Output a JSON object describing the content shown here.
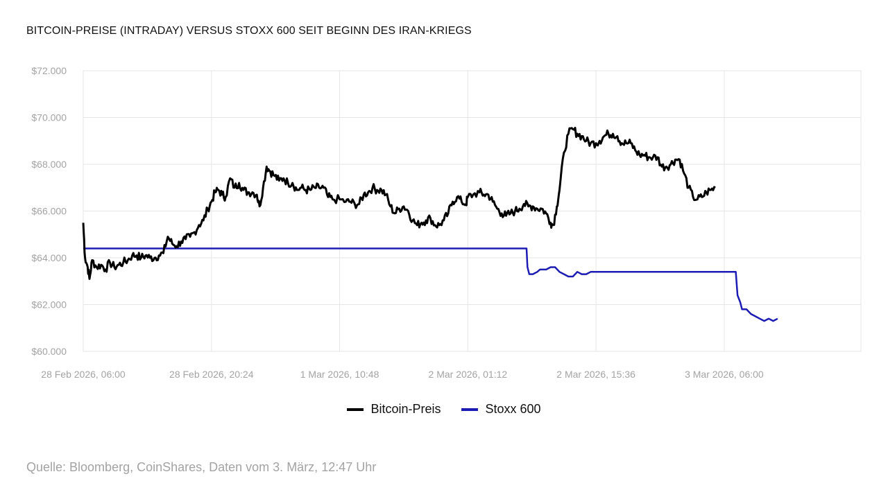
{
  "chart_data": {
    "type": "line",
    "title": "BITCOIN-PREISE (INTRADAY) VERSUS STOXX 600 SEIT BEGINN DES IRAN-KRIEGS",
    "source": "Quelle: Bloomberg, CoinShares, Daten vom 3. März, 12:47 Uhr",
    "y_ticks": [
      "$72.000",
      "$70.000",
      "$68.000",
      "$66.000",
      "$64.000",
      "$62.000",
      "$60.000"
    ],
    "y_tick_values": [
      72000,
      70000,
      68000,
      66000,
      64000,
      62000,
      60000
    ],
    "ylim": [
      60000,
      72000
    ],
    "x_ticks": [
      "28 Feb 2026, 06:00",
      "28 Feb 2026, 20:24",
      "1 Mar 2026, 10:48",
      "2 Mar 2026, 01:12",
      "2 Mar 2026, 15:36",
      "3 Mar 2026, 06:00"
    ],
    "x_tick_hours": [
      0,
      14.4,
      28.8,
      43.2,
      57.6,
      72
    ],
    "x_unit": "hours since 28 Feb 2026, 06:00",
    "xlim": [
      0,
      87.36
    ],
    "grid": true,
    "legend_position": "bottom-center",
    "colors": {
      "bitcoin": "#000000",
      "stoxx": "#1c1cb4",
      "grid": "#e6e6e6",
      "tick": "#a3a3a3"
    },
    "series": [
      {
        "name": "Bitcoin-Preis",
        "color": "#000000",
        "points": [
          [
            0,
            65500
          ],
          [
            0.2,
            64000
          ],
          [
            0.5,
            63600
          ],
          [
            0.7,
            63100
          ],
          [
            1.0,
            63900
          ],
          [
            1.5,
            63600
          ],
          [
            2.0,
            63700
          ],
          [
            2.5,
            63500
          ],
          [
            3.0,
            63800
          ],
          [
            3.5,
            63600
          ],
          [
            4.0,
            63700
          ],
          [
            4.5,
            63800
          ],
          [
            5.0,
            63900
          ],
          [
            5.5,
            64100
          ],
          [
            6.0,
            64100
          ],
          [
            6.5,
            64000
          ],
          [
            7.0,
            64100
          ],
          [
            7.5,
            64000
          ],
          [
            8.0,
            64000
          ],
          [
            8.5,
            64100
          ],
          [
            9.0,
            64200
          ],
          [
            9.5,
            64900
          ],
          [
            10.0,
            64600
          ],
          [
            10.5,
            64500
          ],
          [
            11.0,
            64700
          ],
          [
            11.5,
            64800
          ],
          [
            12.0,
            64900
          ],
          [
            12.5,
            65100
          ],
          [
            13.0,
            65400
          ],
          [
            13.5,
            65600
          ],
          [
            14.0,
            66100
          ],
          [
            14.4,
            66400
          ],
          [
            14.8,
            66800
          ],
          [
            15.2,
            66900
          ],
          [
            15.6,
            66700
          ],
          [
            16.0,
            66600
          ],
          [
            16.5,
            67400
          ],
          [
            17.0,
            67000
          ],
          [
            17.5,
            67200
          ],
          [
            18.0,
            66900
          ],
          [
            18.5,
            66800
          ],
          [
            19.0,
            66800
          ],
          [
            19.5,
            66700
          ],
          [
            19.8,
            66200
          ],
          [
            20.2,
            67000
          ],
          [
            20.6,
            67900
          ],
          [
            21.0,
            67700
          ],
          [
            21.5,
            67500
          ],
          [
            22.0,
            67300
          ],
          [
            22.5,
            67400
          ],
          [
            23.0,
            67200
          ],
          [
            23.5,
            67200
          ],
          [
            24.0,
            66900
          ],
          [
            24.5,
            67000
          ],
          [
            25.0,
            66900
          ],
          [
            25.5,
            66900
          ],
          [
            26.0,
            67000
          ],
          [
            26.5,
            67000
          ],
          [
            27.0,
            67000
          ],
          [
            27.5,
            66600
          ],
          [
            28.0,
            66500
          ],
          [
            28.8,
            66500
          ],
          [
            29.5,
            66400
          ],
          [
            30.0,
            66400
          ],
          [
            30.5,
            66300
          ],
          [
            31.0,
            66300
          ],
          [
            31.5,
            66700
          ],
          [
            32.0,
            66800
          ],
          [
            32.5,
            67000
          ],
          [
            33.0,
            66900
          ],
          [
            33.5,
            66900
          ],
          [
            34.0,
            66700
          ],
          [
            34.5,
            66200
          ],
          [
            35.0,
            65900
          ],
          [
            35.5,
            66100
          ],
          [
            36.0,
            66200
          ],
          [
            36.5,
            66000
          ],
          [
            37.0,
            65600
          ],
          [
            37.5,
            65400
          ],
          [
            38.0,
            65500
          ],
          [
            38.5,
            65600
          ],
          [
            39.0,
            65700
          ],
          [
            39.5,
            65400
          ],
          [
            40.0,
            65400
          ],
          [
            40.5,
            65600
          ],
          [
            41.0,
            65900
          ],
          [
            41.5,
            66400
          ],
          [
            42.0,
            66600
          ],
          [
            42.5,
            66400
          ],
          [
            43.0,
            66300
          ],
          [
            43.2,
            66600
          ],
          [
            43.8,
            66700
          ],
          [
            44.5,
            66800
          ],
          [
            45.0,
            66700
          ],
          [
            45.5,
            66700
          ],
          [
            46.0,
            66400
          ],
          [
            46.5,
            66100
          ],
          [
            47.0,
            65900
          ],
          [
            47.5,
            65800
          ],
          [
            48.0,
            65900
          ],
          [
            48.5,
            66000
          ],
          [
            49.0,
            66100
          ],
          [
            49.5,
            66300
          ],
          [
            50.0,
            66200
          ],
          [
            50.5,
            66200
          ],
          [
            51.0,
            66100
          ],
          [
            51.5,
            66100
          ],
          [
            52.0,
            65900
          ],
          [
            52.5,
            65500
          ],
          [
            52.8,
            65400
          ],
          [
            53.2,
            66200
          ],
          [
            53.5,
            66900
          ],
          [
            54.0,
            68500
          ],
          [
            54.5,
            69300
          ],
          [
            55.0,
            69500
          ],
          [
            55.5,
            69300
          ],
          [
            56.0,
            69200
          ],
          [
            56.5,
            69000
          ],
          [
            57.0,
            68900
          ],
          [
            57.6,
            68900
          ],
          [
            58.0,
            69000
          ],
          [
            58.5,
            69200
          ],
          [
            59.0,
            69300
          ],
          [
            59.5,
            69300
          ],
          [
            60.0,
            69200
          ],
          [
            60.5,
            68900
          ],
          [
            61.0,
            68900
          ],
          [
            61.5,
            68900
          ],
          [
            62.0,
            68600
          ],
          [
            62.5,
            68400
          ],
          [
            63.0,
            68400
          ],
          [
            63.5,
            68300
          ],
          [
            64.0,
            68300
          ],
          [
            64.5,
            68300
          ],
          [
            65.0,
            67900
          ],
          [
            65.5,
            67900
          ],
          [
            66.0,
            68000
          ],
          [
            66.5,
            68200
          ],
          [
            67.0,
            68200
          ],
          [
            67.5,
            67600
          ],
          [
            68.0,
            67000
          ],
          [
            68.5,
            66600
          ],
          [
            69.0,
            66500
          ],
          [
            69.5,
            66600
          ],
          [
            70.0,
            66800
          ],
          [
            70.5,
            66900
          ],
          [
            71.0,
            67000
          ]
        ]
      },
      {
        "name": "Stoxx 600",
        "color": "#1c1cb4",
        "points": [
          [
            0,
            64400
          ],
          [
            49.8,
            64400
          ],
          [
            49.9,
            63600
          ],
          [
            50.1,
            63300
          ],
          [
            50.5,
            63300
          ],
          [
            51.0,
            63400
          ],
          [
            51.3,
            63500
          ],
          [
            52.0,
            63500
          ],
          [
            52.5,
            63600
          ],
          [
            53.0,
            63600
          ],
          [
            53.5,
            63400
          ],
          [
            54.0,
            63300
          ],
          [
            54.5,
            63200
          ],
          [
            55.0,
            63200
          ],
          [
            55.5,
            63400
          ],
          [
            56.0,
            63300
          ],
          [
            56.5,
            63300
          ],
          [
            57.0,
            63400
          ],
          [
            57.6,
            63400
          ],
          [
            58.0,
            63400
          ],
          [
            72.0,
            63400
          ],
          [
            73.3,
            63400
          ],
          [
            73.5,
            62400
          ],
          [
            73.8,
            62100
          ],
          [
            74.0,
            61800
          ],
          [
            74.5,
            61800
          ],
          [
            75.0,
            61600
          ],
          [
            75.5,
            61500
          ],
          [
            76.0,
            61400
          ],
          [
            76.5,
            61300
          ],
          [
            77.0,
            61400
          ],
          [
            77.5,
            61300
          ],
          [
            78.0,
            61400
          ]
        ]
      }
    ]
  }
}
